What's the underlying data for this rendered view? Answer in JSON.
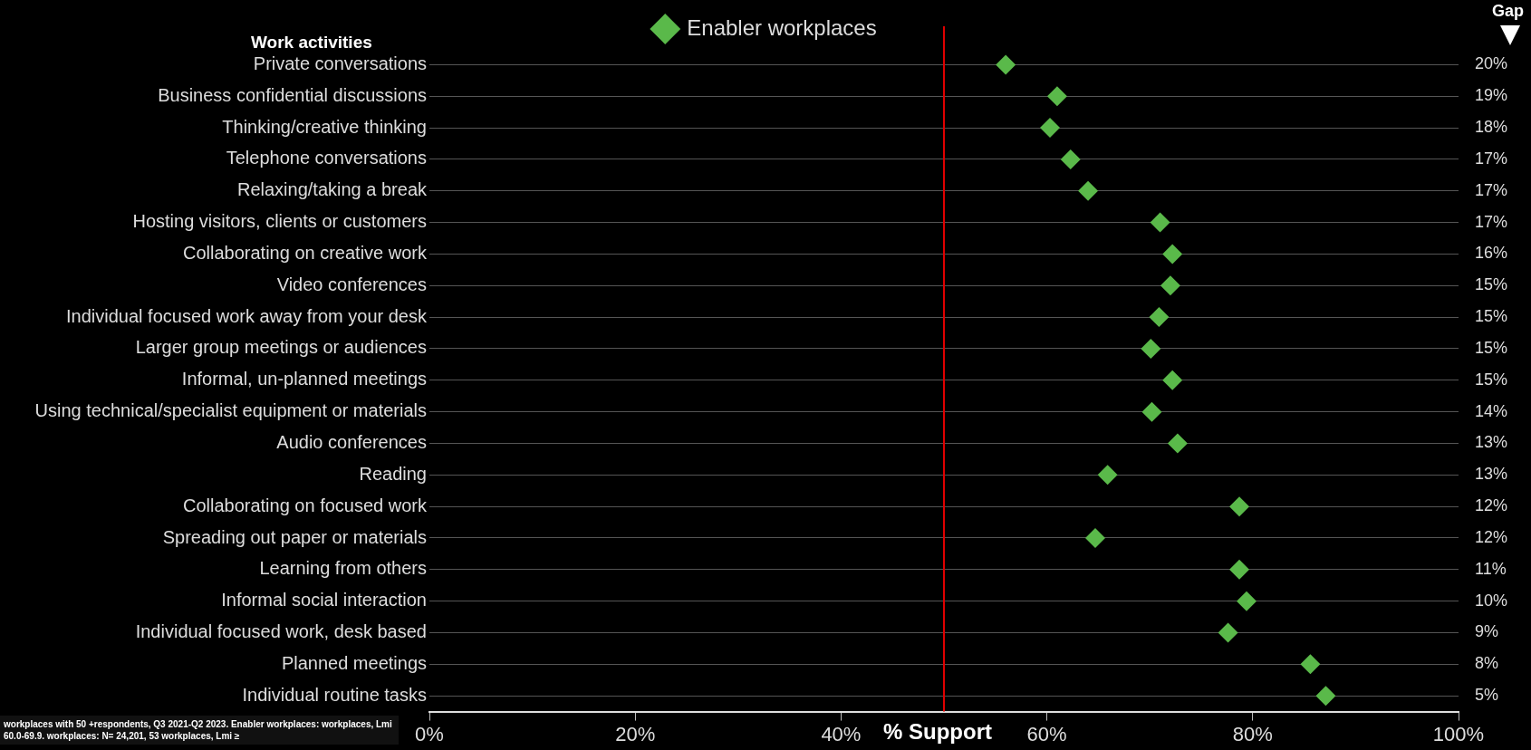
{
  "chart_data": {
    "type": "scatter",
    "ylabel": "Work activities",
    "xlabel": "% Support",
    "y2label": "Gap",
    "categories": [
      "Private conversations",
      "Business confidential discussions",
      "Thinking/creative thinking",
      "Telephone conversations",
      "Relaxing/taking a break",
      "Hosting visitors, clients or customers",
      "Collaborating on creative work",
      "Video conferences",
      "Individual focused work away from your desk",
      "Larger group meetings or audiences",
      "Informal, un-planned meetings",
      "Using technical/specialist equipment or materials",
      "Audio conferences",
      "Reading",
      "Collaborating on focused work",
      "Spreading out paper or materials",
      "Learning from others",
      "Informal social interaction",
      "Individual focused work, desk based",
      "Planned meetings",
      "Individual routine tasks"
    ],
    "y2_categories": [
      "20%",
      "19%",
      "18%",
      "17%",
      "17%",
      "17%",
      "16%",
      "15%",
      "15%",
      "15%",
      "15%",
      "14%",
      "13%",
      "13%",
      "12%",
      "12%",
      "11%",
      "10%",
      "9%",
      "8%",
      "5%"
    ],
    "series": [
      {
        "name": "Enabler workplaces",
        "color": "#5ab94a",
        "values": [
          56,
          61,
          60.3,
          62.3,
          64,
          71,
          72.2,
          72,
          70.9,
          70.1,
          72.2,
          70.2,
          72.7,
          65.9,
          78.7,
          64.7,
          78.7,
          79.4,
          77.6,
          85.6,
          87.1
        ]
      }
    ],
    "xlim": [
      0,
      100
    ],
    "xticks": [
      {
        "value": 0,
        "label": "0%"
      },
      {
        "value": 20,
        "label": "20%"
      },
      {
        "value": 40,
        "label": "40%"
      },
      {
        "value": 60,
        "label": "60%"
      },
      {
        "value": 80,
        "label": "80%"
      },
      {
        "value": 100,
        "label": "100%"
      }
    ],
    "ref_lines": [
      {
        "axis": "x",
        "value": 50,
        "color": "#e00000"
      }
    ],
    "grid": "y",
    "legend": "top",
    "marker": "diamond",
    "orientation": "horizontal",
    "annotations": [
      "workplaces with 50 +respondents, Q3 2021-Q2 2023. Enabler workplaces: workplaces, Lmi 60.0-69.9. workplaces: N= 24,201, 53 workplaces, Lmi ≥"
    ]
  }
}
